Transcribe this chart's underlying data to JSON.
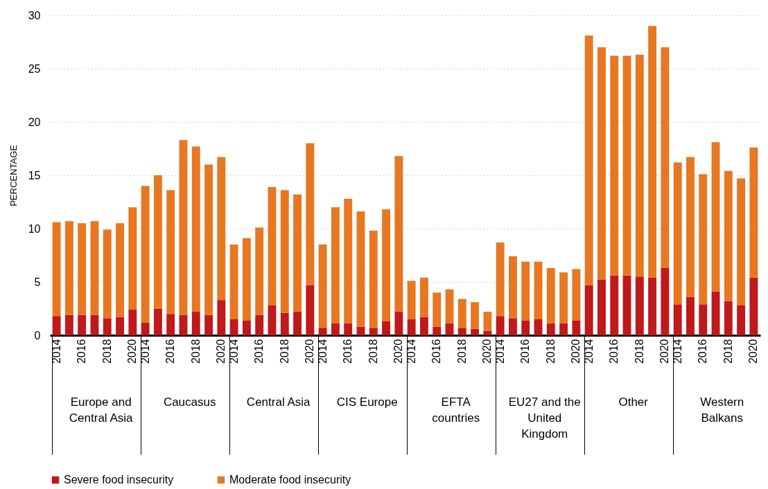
{
  "chart_data": {
    "type": "bar",
    "stacked": true,
    "ylabel": "PERCENTAGE",
    "categories": [
      "2014",
      null,
      "2016",
      null,
      "2018",
      null,
      "2020",
      "2014",
      null,
      "2016",
      null,
      "2018",
      null,
      "2020",
      "2014",
      null,
      "2016",
      null,
      "2018",
      null,
      "2020",
      "2014",
      null,
      "2016",
      null,
      "2018",
      null,
      "2020",
      "2014",
      null,
      "2016",
      null,
      "2018",
      null,
      "2020",
      "2014",
      null,
      "2016",
      null,
      "2018",
      null,
      "2020",
      "2014",
      null,
      "2016",
      null,
      "2018",
      null,
      "2020",
      "2014",
      null,
      "2016",
      null,
      "2018",
      null,
      "2020"
    ],
    "series": [
      {
        "name": "Severe food insecurity",
        "color": "#c0181b",
        "values": [
          1.8,
          1.9,
          1.9,
          1.9,
          1.6,
          1.7,
          2.4,
          1.2,
          2.5,
          2.0,
          1.9,
          2.2,
          1.9,
          3.3,
          1.5,
          1.4,
          1.9,
          2.8,
          2.1,
          2.2,
          4.7,
          0.7,
          1.1,
          1.1,
          0.8,
          0.7,
          1.3,
          2.2,
          1.5,
          1.7,
          0.8,
          1.1,
          0.7,
          0.6,
          0.4,
          1.8,
          1.6,
          1.4,
          1.5,
          1.1,
          1.1,
          1.4,
          4.7,
          5.2,
          5.6,
          5.6,
          5.5,
          5.4,
          6.3,
          2.9,
          3.6,
          2.9,
          4.1,
          3.2,
          2.8,
          5.4
        ]
      },
      {
        "name": "Moderate food insecurity",
        "color": "#e87722",
        "values": [
          8.8,
          8.8,
          8.6,
          8.8,
          8.3,
          8.8,
          9.6,
          12.8,
          12.5,
          11.6,
          16.4,
          15.5,
          14.1,
          13.4,
          7.0,
          7.7,
          8.2,
          11.1,
          11.5,
          11.0,
          13.3,
          7.8,
          10.9,
          11.7,
          10.8,
          9.1,
          10.5,
          14.6,
          3.6,
          3.7,
          3.2,
          3.2,
          2.7,
          2.5,
          1.8,
          6.9,
          5.8,
          5.5,
          5.4,
          5.2,
          4.8,
          4.8,
          23.4,
          21.8,
          20.6,
          20.6,
          20.8,
          23.6,
          20.7,
          13.3,
          13.1,
          12.2,
          14.0,
          12.2,
          11.9,
          12.2
        ]
      }
    ],
    "annotations": [
      "Europe and Central Asia",
      "Caucasus",
      "Central Asia",
      "CIS Europe",
      "EFTA countries",
      "EU27 and the United Kingdom",
      "Other",
      "Western Balkans"
    ],
    "ylim": [
      0,
      30
    ],
    "yticks": [
      0,
      5,
      10,
      15,
      20,
      25,
      30
    ],
    "grid": "y",
    "legend": "bottom left"
  }
}
